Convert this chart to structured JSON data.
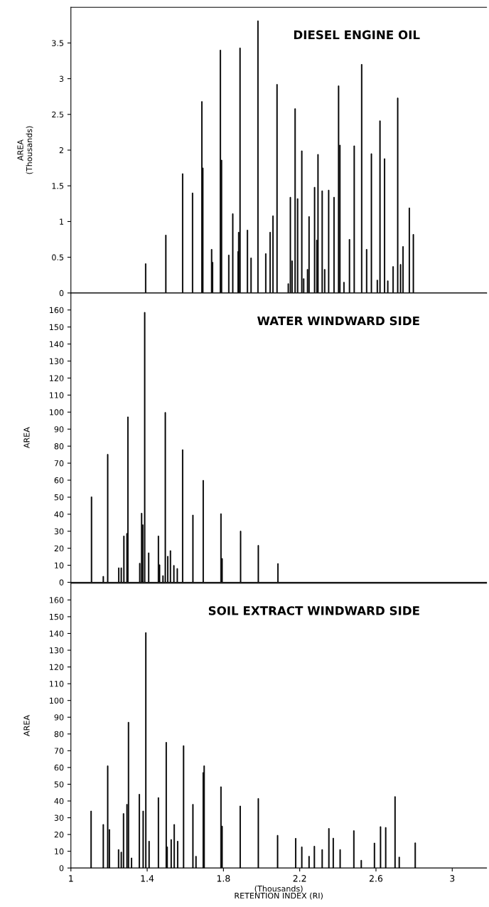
{
  "chart_data": [
    {
      "type": "bar",
      "title": "DIESEL ENGINE OIL",
      "ylabel": "AREA\n(Thousands)",
      "tick_labels": "y",
      "xlim": [
        1,
        3.18
      ],
      "ylim": [
        0,
        4
      ],
      "yticks": [
        0,
        0.5,
        1,
        1.5,
        2,
        2.5,
        3,
        3.5
      ],
      "color": "#000000",
      "x": [
        1.392,
        1.498,
        1.586,
        1.638,
        1.687,
        1.692,
        1.738,
        1.743,
        1.784,
        1.79,
        1.828,
        1.849,
        1.877,
        1.88,
        1.887,
        1.926,
        1.945,
        1.981,
        2.022,
        2.045,
        2.06,
        2.081,
        2.14,
        2.151,
        2.16,
        2.176,
        2.189,
        2.211,
        2.221,
        2.241,
        2.249,
        2.278,
        2.29,
        2.296,
        2.318,
        2.331,
        2.352,
        2.38,
        2.404,
        2.411,
        2.432,
        2.461,
        2.486,
        2.525,
        2.551,
        2.576,
        2.607,
        2.621,
        2.645,
        2.662,
        2.69,
        2.714,
        2.729,
        2.742,
        2.775,
        2.796
      ],
      "values": [
        0.41,
        0.81,
        1.67,
        1.4,
        2.68,
        1.75,
        0.61,
        0.43,
        3.4,
        1.86,
        0.53,
        1.11,
        0.58,
        0.85,
        3.43,
        0.88,
        0.49,
        3.81,
        0.55,
        0.85,
        1.08,
        2.92,
        0.13,
        1.34,
        0.45,
        2.58,
        1.32,
        1.99,
        0.2,
        0.33,
        1.07,
        1.48,
        0.74,
        1.94,
        1.43,
        0.33,
        1.44,
        1.34,
        2.9,
        2.07,
        0.15,
        0.75,
        2.06,
        3.2,
        0.61,
        1.95,
        0.18,
        2.41,
        1.88,
        0.17,
        0.37,
        2.73,
        0.4,
        0.65,
        1.19,
        0.82
      ]
    },
    {
      "type": "bar",
      "title": "WATER WINDWARD SIDE",
      "ylabel": "AREA",
      "tick_labels": "y",
      "xlim": [
        1,
        3.18
      ],
      "ylim": [
        0,
        170
      ],
      "yticks": [
        0,
        10,
        20,
        30,
        40,
        50,
        60,
        70,
        80,
        90,
        100,
        110,
        120,
        130,
        140,
        150,
        160
      ],
      "color": "#000000",
      "x": [
        1.108,
        1.17,
        1.193,
        1.251,
        1.264,
        1.278,
        1.294,
        1.299,
        1.361,
        1.371,
        1.377,
        1.387,
        1.408,
        1.459,
        1.465,
        1.483,
        1.495,
        1.508,
        1.522,
        1.54,
        1.558,
        1.586,
        1.64,
        1.694,
        1.787,
        1.793,
        1.89,
        1.983,
        2.086
      ],
      "values": [
        50.2,
        3.5,
        75.2,
        8.5,
        8.5,
        27.2,
        28.7,
        97.2,
        11.2,
        40.6,
        33.8,
        158.6,
        17.3,
        27.2,
        10.3,
        3.9,
        99.8,
        15.3,
        18.6,
        9.9,
        8.1,
        77.9,
        39.5,
        59.9,
        40.3,
        14,
        30.1,
        21.7,
        11
      ]
    },
    {
      "type": "bar",
      "title": "SOIL EXTRACT WINDWARD SIDE",
      "ylabel": "AREA",
      "xlabel": "(Thousands)\nRETENTION INDEX (RI)",
      "xlim": [
        1,
        3.18
      ],
      "xticks": [
        1,
        1.4,
        1.8,
        2.2,
        2.6,
        3
      ],
      "ylim": [
        0,
        170
      ],
      "yticks": [
        0,
        10,
        20,
        30,
        40,
        50,
        60,
        70,
        80,
        90,
        100,
        110,
        120,
        130,
        140,
        150,
        160
      ],
      "color": "#000000",
      "x": [
        1.106,
        1.17,
        1.193,
        1.202,
        1.25,
        1.264,
        1.276,
        1.294,
        1.302,
        1.318,
        1.359,
        1.379,
        1.393,
        1.41,
        1.459,
        1.5,
        1.505,
        1.526,
        1.542,
        1.56,
        1.591,
        1.64,
        1.656,
        1.694,
        1.699,
        1.787,
        1.793,
        1.888,
        1.983,
        2.084,
        2.179,
        2.211,
        2.249,
        2.277,
        2.318,
        2.353,
        2.376,
        2.412,
        2.484,
        2.523,
        2.592,
        2.624,
        2.651,
        2.7,
        2.722,
        2.806
      ],
      "values": [
        34,
        26,
        61,
        23,
        11,
        9.5,
        32.5,
        38,
        87,
        6,
        44,
        34,
        140.5,
        16,
        42,
        75,
        12.6,
        17,
        26,
        16,
        73,
        38,
        7,
        57,
        61,
        48.5,
        25,
        37,
        41.5,
        19.5,
        17.7,
        12.6,
        7,
        13,
        11,
        23.6,
        17.8,
        11,
        22.3,
        4.6,
        14.9,
        24.7,
        24.2,
        42.6,
        6.5,
        15
      ]
    }
  ]
}
